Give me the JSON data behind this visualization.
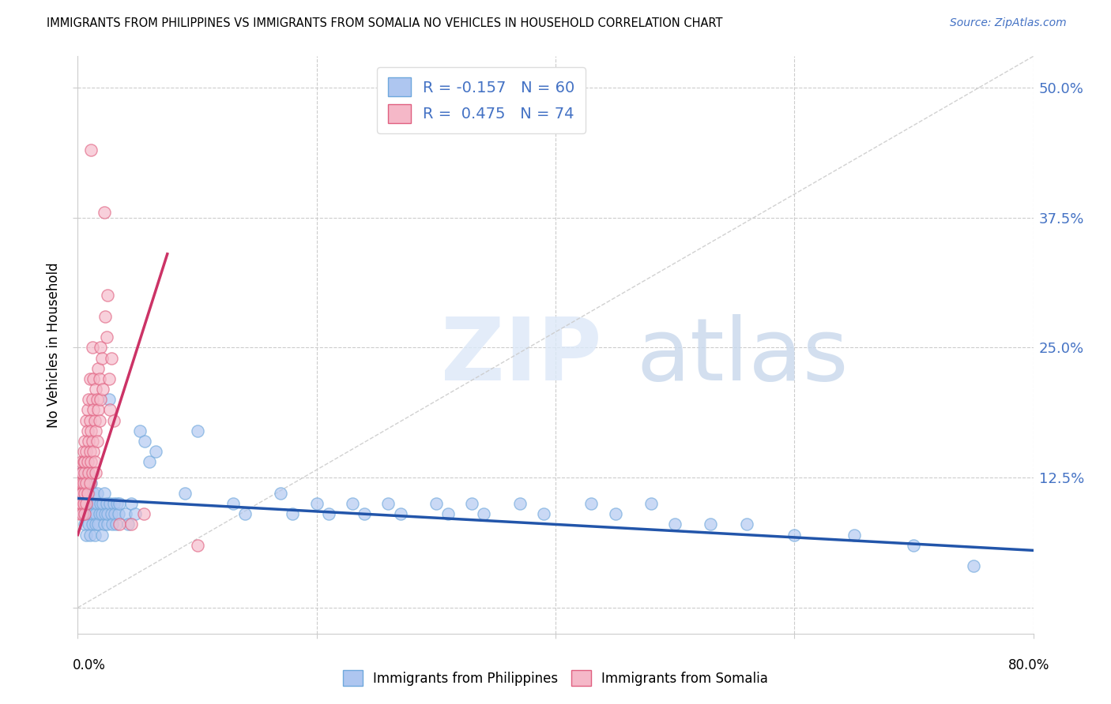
{
  "title": "IMMIGRANTS FROM PHILIPPINES VS IMMIGRANTS FROM SOMALIA NO VEHICLES IN HOUSEHOLD CORRELATION CHART",
  "source": "Source: ZipAtlas.com",
  "ylabel": "No Vehicles in Household",
  "ytick_labels": [
    "",
    "12.5%",
    "25.0%",
    "37.5%",
    "50.0%"
  ],
  "ytick_values": [
    0.0,
    0.125,
    0.25,
    0.375,
    0.5
  ],
  "xlim": [
    0.0,
    0.8
  ],
  "ylim": [
    -0.025,
    0.53
  ],
  "philippines_color": "#aec6f0",
  "philippines_edge": "#6fa8dc",
  "somalia_color": "#f5b8c8",
  "somalia_edge": "#e06080",
  "regression_philippines_color": "#2255aa",
  "regression_somalia_color": "#cc3366",
  "diagonal_color": "#cccccc",
  "philippines_data": [
    [
      0.003,
      0.13
    ],
    [
      0.004,
      0.1
    ],
    [
      0.005,
      0.09
    ],
    [
      0.005,
      0.11
    ],
    [
      0.006,
      0.08
    ],
    [
      0.006,
      0.12
    ],
    [
      0.007,
      0.07
    ],
    [
      0.007,
      0.1
    ],
    [
      0.008,
      0.09
    ],
    [
      0.008,
      0.13
    ],
    [
      0.009,
      0.08
    ],
    [
      0.009,
      0.11
    ],
    [
      0.01,
      0.1
    ],
    [
      0.01,
      0.07
    ],
    [
      0.011,
      0.09
    ],
    [
      0.011,
      0.12
    ],
    [
      0.012,
      0.08
    ],
    [
      0.012,
      0.1
    ],
    [
      0.013,
      0.09
    ],
    [
      0.013,
      0.11
    ],
    [
      0.014,
      0.07
    ],
    [
      0.014,
      0.1
    ],
    [
      0.015,
      0.09
    ],
    [
      0.015,
      0.08
    ],
    [
      0.016,
      0.1
    ],
    [
      0.016,
      0.11
    ],
    [
      0.017,
      0.08
    ],
    [
      0.018,
      0.09
    ],
    [
      0.019,
      0.1
    ],
    [
      0.02,
      0.09
    ],
    [
      0.02,
      0.07
    ],
    [
      0.021,
      0.1
    ],
    [
      0.022,
      0.08
    ],
    [
      0.022,
      0.11
    ],
    [
      0.023,
      0.09
    ],
    [
      0.024,
      0.1
    ],
    [
      0.025,
      0.08
    ],
    [
      0.025,
      0.09
    ],
    [
      0.026,
      0.2
    ],
    [
      0.027,
      0.1
    ],
    [
      0.028,
      0.09
    ],
    [
      0.029,
      0.08
    ],
    [
      0.03,
      0.1
    ],
    [
      0.031,
      0.09
    ],
    [
      0.032,
      0.08
    ],
    [
      0.033,
      0.1
    ],
    [
      0.034,
      0.09
    ],
    [
      0.035,
      0.1
    ],
    [
      0.04,
      0.09
    ],
    [
      0.042,
      0.08
    ],
    [
      0.045,
      0.1
    ],
    [
      0.048,
      0.09
    ],
    [
      0.052,
      0.17
    ],
    [
      0.056,
      0.16
    ],
    [
      0.06,
      0.14
    ],
    [
      0.065,
      0.15
    ],
    [
      0.09,
      0.11
    ],
    [
      0.1,
      0.17
    ],
    [
      0.13,
      0.1
    ],
    [
      0.14,
      0.09
    ],
    [
      0.17,
      0.11
    ],
    [
      0.18,
      0.09
    ],
    [
      0.2,
      0.1
    ],
    [
      0.21,
      0.09
    ],
    [
      0.23,
      0.1
    ],
    [
      0.24,
      0.09
    ],
    [
      0.26,
      0.1
    ],
    [
      0.27,
      0.09
    ],
    [
      0.3,
      0.1
    ],
    [
      0.31,
      0.09
    ],
    [
      0.33,
      0.1
    ],
    [
      0.34,
      0.09
    ],
    [
      0.37,
      0.1
    ],
    [
      0.39,
      0.09
    ],
    [
      0.43,
      0.1
    ],
    [
      0.45,
      0.09
    ],
    [
      0.48,
      0.1
    ],
    [
      0.5,
      0.08
    ],
    [
      0.53,
      0.08
    ],
    [
      0.56,
      0.08
    ],
    [
      0.6,
      0.07
    ],
    [
      0.65,
      0.07
    ],
    [
      0.7,
      0.06
    ],
    [
      0.75,
      0.04
    ]
  ],
  "somalia_data": [
    [
      0.001,
      0.1
    ],
    [
      0.001,
      0.11
    ],
    [
      0.002,
      0.12
    ],
    [
      0.002,
      0.1
    ],
    [
      0.002,
      0.09
    ],
    [
      0.003,
      0.13
    ],
    [
      0.003,
      0.11
    ],
    [
      0.003,
      0.14
    ],
    [
      0.003,
      0.1
    ],
    [
      0.004,
      0.12
    ],
    [
      0.004,
      0.09
    ],
    [
      0.004,
      0.11
    ],
    [
      0.004,
      0.13
    ],
    [
      0.005,
      0.14
    ],
    [
      0.005,
      0.1
    ],
    [
      0.005,
      0.12
    ],
    [
      0.005,
      0.15
    ],
    [
      0.006,
      0.13
    ],
    [
      0.006,
      0.11
    ],
    [
      0.006,
      0.16
    ],
    [
      0.006,
      0.09
    ],
    [
      0.006,
      0.14
    ],
    [
      0.007,
      0.18
    ],
    [
      0.007,
      0.12
    ],
    [
      0.007,
      0.15
    ],
    [
      0.007,
      0.1
    ],
    [
      0.008,
      0.17
    ],
    [
      0.008,
      0.14
    ],
    [
      0.008,
      0.11
    ],
    [
      0.008,
      0.19
    ],
    [
      0.009,
      0.16
    ],
    [
      0.009,
      0.13
    ],
    [
      0.009,
      0.2
    ],
    [
      0.01,
      0.15
    ],
    [
      0.01,
      0.12
    ],
    [
      0.01,
      0.22
    ],
    [
      0.01,
      0.18
    ],
    [
      0.011,
      0.17
    ],
    [
      0.011,
      0.14
    ],
    [
      0.011,
      0.44
    ],
    [
      0.012,
      0.2
    ],
    [
      0.012,
      0.16
    ],
    [
      0.012,
      0.13
    ],
    [
      0.012,
      0.25
    ],
    [
      0.013,
      0.19
    ],
    [
      0.013,
      0.15
    ],
    [
      0.013,
      0.22
    ],
    [
      0.014,
      0.18
    ],
    [
      0.014,
      0.14
    ],
    [
      0.015,
      0.21
    ],
    [
      0.015,
      0.17
    ],
    [
      0.015,
      0.13
    ],
    [
      0.016,
      0.2
    ],
    [
      0.016,
      0.16
    ],
    [
      0.017,
      0.23
    ],
    [
      0.017,
      0.19
    ],
    [
      0.018,
      0.22
    ],
    [
      0.018,
      0.18
    ],
    [
      0.019,
      0.25
    ],
    [
      0.019,
      0.2
    ],
    [
      0.02,
      0.24
    ],
    [
      0.021,
      0.21
    ],
    [
      0.022,
      0.38
    ],
    [
      0.023,
      0.28
    ],
    [
      0.024,
      0.26
    ],
    [
      0.025,
      0.3
    ],
    [
      0.026,
      0.22
    ],
    [
      0.027,
      0.19
    ],
    [
      0.028,
      0.24
    ],
    [
      0.03,
      0.18
    ],
    [
      0.035,
      0.08
    ],
    [
      0.045,
      0.08
    ],
    [
      0.055,
      0.09
    ],
    [
      0.1,
      0.06
    ]
  ]
}
